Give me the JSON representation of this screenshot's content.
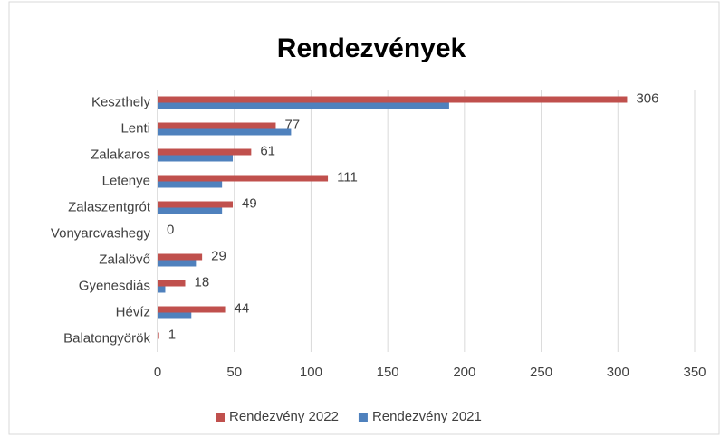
{
  "chart_data": {
    "type": "hbar",
    "title": "Rendezvények",
    "categories": [
      "Keszthely",
      "Lenti",
      "Zalakaros",
      "Letenye",
      "Zalaszentgrót",
      "Vonyarcvashegy",
      "Zalalövő",
      "Gyenesdiás",
      "Hévíz",
      "Balatongyörök"
    ],
    "series": [
      {
        "name": "Rendezvény 2022",
        "color": "#c0504d",
        "values": [
          306,
          77,
          61,
          111,
          49,
          0,
          29,
          18,
          44,
          1
        ]
      },
      {
        "name": "Rendezvény 2021",
        "color": "#4f81bd",
        "values": [
          190,
          87,
          49,
          42,
          42,
          0,
          25,
          5,
          22,
          0
        ]
      }
    ],
    "xlim": [
      0,
      350
    ],
    "xticks": [
      0,
      50,
      100,
      150,
      200,
      250,
      300,
      350
    ],
    "grid": true,
    "legend": "bottom"
  }
}
